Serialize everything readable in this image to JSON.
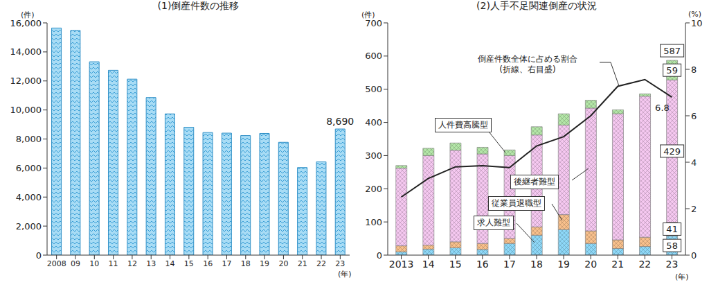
{
  "chart_data": [
    {
      "type": "bar",
      "title": "(1)倒産件数の推移",
      "y_label": "(件)",
      "x_label": "(年)",
      "categories": [
        "2008",
        "09",
        "10",
        "11",
        "12",
        "13",
        "14",
        "15",
        "16",
        "17",
        "18",
        "19",
        "20",
        "21",
        "22",
        "23"
      ],
      "values": [
        15646,
        15480,
        13321,
        12734,
        12124,
        10855,
        9731,
        8812,
        8446,
        8405,
        8235,
        8383,
        7773,
        6030,
        6428,
        8690
      ],
      "value_labels": [
        null,
        null,
        null,
        null,
        null,
        null,
        null,
        null,
        null,
        null,
        null,
        null,
        null,
        null,
        null,
        "8,690"
      ],
      "color": "#a8dcf5",
      "ylim": [
        0,
        16000
      ],
      "yticks": [
        0,
        {
          "value": 2000,
          "label": "2,000"
        },
        {
          "value": 4000,
          "label": "4,000"
        },
        {
          "value": 6000,
          "label": "6,000"
        },
        {
          "value": 8000,
          "label": "8,000"
        },
        {
          "value": 10000,
          "label": "10,000"
        },
        {
          "value": 12000,
          "label": "12,000"
        },
        {
          "value": 14000,
          "label": "14,000"
        },
        {
          "value": 16000,
          "label": "16,000"
        }
      ],
      "grid": false
    },
    {
      "type": "bar",
      "stacked": true,
      "title": "(2)人手不足関連倒産の状況",
      "y_label": "(件)",
      "y2_label": "(%)",
      "x_label": "(年)",
      "categories": [
        "2013",
        "14",
        "15",
        "16",
        "17",
        "18",
        "19",
        "20",
        "21",
        "22",
        "23"
      ],
      "series": [
        {
          "name": "求人難型",
          "color": "#8ed8f8",
          "values": [
            10,
            18,
            22,
            17,
            35,
            60,
            77,
            35,
            20,
            26,
            58
          ],
          "value_labels": [
            null,
            null,
            null,
            null,
            null,
            null,
            null,
            null,
            null,
            null,
            "58"
          ]
        },
        {
          "name": "従業員退職型",
          "color": "#f8c08c",
          "values": [
            18,
            12,
            18,
            18,
            15,
            25,
            45,
            38,
            26,
            28,
            41
          ],
          "value_labels": [
            null,
            null,
            null,
            null,
            null,
            null,
            null,
            null,
            null,
            null,
            "41"
          ]
        },
        {
          "name": "後継者難型",
          "color": "#f5c8f0",
          "values": [
            234,
            270,
            276,
            270,
            250,
            277,
            270,
            370,
            380,
            425,
            429
          ],
          "value_labels": [
            null,
            null,
            null,
            null,
            null,
            null,
            null,
            null,
            null,
            null,
            "429"
          ]
        },
        {
          "name": "人件費高騰型",
          "color": "#b4e6a8",
          "values": [
            8,
            22,
            22,
            20,
            17,
            25,
            34,
            24,
            12,
            7,
            59
          ],
          "value_labels": [
            null,
            null,
            null,
            null,
            null,
            null,
            null,
            null,
            null,
            null,
            "59"
          ]
        },
        {
          "name": "倒産件数全体に占める割合",
          "type": "line",
          "axis": "y2",
          "color": "#222222",
          "values": [
            2.5,
            3.3,
            3.8,
            3.85,
            3.77,
            4.7,
            5.1,
            6.0,
            7.27,
            7.56,
            6.8
          ],
          "value_labels": [
            null,
            null,
            null,
            null,
            null,
            null,
            null,
            null,
            null,
            null,
            "6.8"
          ]
        }
      ],
      "totals": [
        null,
        null,
        null,
        null,
        null,
        null,
        null,
        null,
        null,
        null,
        587
      ],
      "annotations": [
        "(折線、右目盛)"
      ],
      "ylim": [
        0,
        700
      ],
      "yticks": [
        0,
        100,
        200,
        300,
        400,
        500,
        600,
        700
      ],
      "y2lim": [
        0,
        10
      ],
      "y2ticks": [
        0,
        2,
        4,
        6,
        8,
        10
      ],
      "grid": false
    }
  ]
}
